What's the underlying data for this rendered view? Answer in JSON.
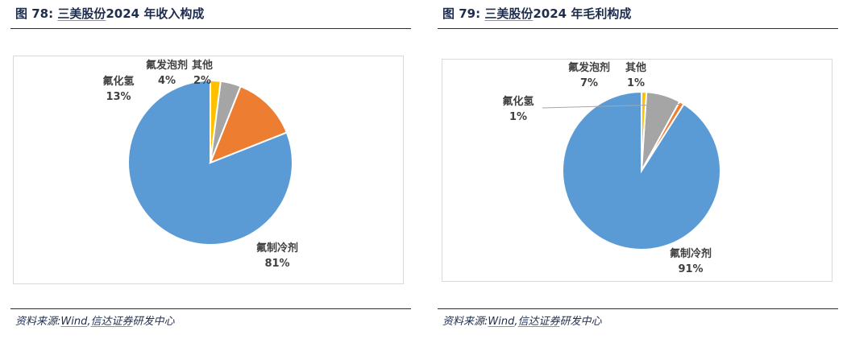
{
  "figures": [
    {
      "title_number": "图 78:",
      "title_company": "三美股份",
      "title_rest": "2024 年收入构成",
      "source_prefix": "资料来源:",
      "source_wind": "Wind",
      "source_sep": ",",
      "source_broker": "信达证券",
      "source_suffix": "研发中心"
    },
    {
      "title_number": "图 79:",
      "title_company": "三美股份",
      "title_rest": "2024 年毛利构成",
      "source_prefix": "资料来源:",
      "source_wind": "Wind",
      "source_sep": ",",
      "source_broker": "信达证券",
      "source_suffix": "研发中心"
    }
  ],
  "chart_data": [
    {
      "type": "pie",
      "title": "",
      "slices": [
        {
          "label": "氟制冷剂",
          "value": 81,
          "value_text": "81%",
          "color": "#5b9bd5"
        },
        {
          "label": "氟化氢",
          "value": 13,
          "value_text": "13%",
          "color": "#ed7d31"
        },
        {
          "label": "氟发泡剂",
          "value": 4,
          "value_text": "4%",
          "color": "#a5a5a5"
        },
        {
          "label": "其他",
          "value": 2,
          "value_text": "2%",
          "color": "#ffc000"
        }
      ]
    },
    {
      "type": "pie",
      "title": "",
      "slices": [
        {
          "label": "氟制冷剂",
          "value": 91,
          "value_text": "91%",
          "color": "#5b9bd5"
        },
        {
          "label": "氟化氢",
          "value": 1,
          "value_text": "1%",
          "color": "#ed7d31"
        },
        {
          "label": "氟发泡剂",
          "value": 7,
          "value_text": "7%",
          "color": "#a5a5a5"
        },
        {
          "label": "其他",
          "value": 1,
          "value_text": "1%",
          "color": "#ffc000"
        }
      ]
    }
  ]
}
